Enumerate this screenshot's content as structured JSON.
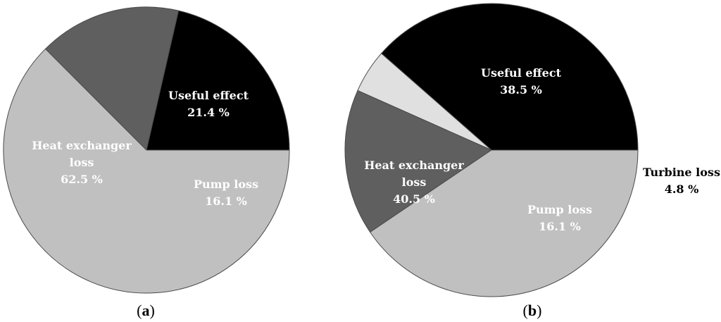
{
  "chart_data": [
    {
      "type": "pie",
      "panel_label": "a",
      "slices": [
        {
          "name_lines": [
            "Useful effect"
          ],
          "value": 21.4,
          "display": "21.4 %",
          "color": "#000000",
          "text_color": "#ffffff"
        },
        {
          "name_lines": [
            "Pump loss"
          ],
          "value": 16.1,
          "display": "16.1 %",
          "color": "#5f5f5f",
          "text_color": "#ffffff"
        },
        {
          "name_lines": [
            "Heat exchanger",
            "loss"
          ],
          "value": 62.5,
          "display": "62.5 %",
          "color": "#c0c0c0",
          "text_color": "#ffffff"
        }
      ]
    },
    {
      "type": "pie",
      "panel_label": "b",
      "slices": [
        {
          "name_lines": [
            "Useful effect"
          ],
          "value": 38.5,
          "display": "38.5 %",
          "color": "#000000",
          "text_color": "#ffffff"
        },
        {
          "name_lines": [
            "Turbine loss"
          ],
          "value": 4.8,
          "display": "4.8 %",
          "color": "#e0e0e0",
          "text_color": "#000000",
          "outside": true
        },
        {
          "name_lines": [
            "Pump loss"
          ],
          "value": 16.1,
          "display": "16.1 %",
          "color": "#5f5f5f",
          "text_color": "#ffffff"
        },
        {
          "name_lines": [
            "Heat exchanger",
            "loss"
          ],
          "value": 40.5,
          "display": "40.5 %",
          "color": "#c0c0c0",
          "text_color": "#ffffff"
        }
      ]
    }
  ]
}
